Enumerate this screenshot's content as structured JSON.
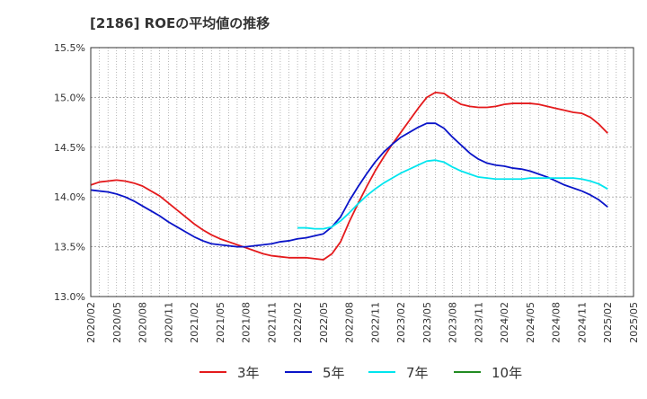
{
  "chart_data": {
    "type": "line",
    "title": "[2186]  ROEの平均値の推移",
    "xlabel": "",
    "ylabel": "",
    "ylim": [
      13.0,
      15.5
    ],
    "y_ticks": [
      "13.0%",
      "13.5%",
      "14.0%",
      "14.5%",
      "15.0%",
      "15.5%"
    ],
    "y_tick_values": [
      13.0,
      13.5,
      14.0,
      14.5,
      15.0,
      15.5
    ],
    "x_ticks": [
      "2020/02",
      "2020/05",
      "2020/08",
      "2020/11",
      "2021/02",
      "2021/05",
      "2021/08",
      "2021/11",
      "2022/02",
      "2022/05",
      "2022/08",
      "2022/11",
      "2023/02",
      "2023/05",
      "2023/08",
      "2023/11",
      "2024/02",
      "2024/05",
      "2024/08",
      "2024/11",
      "2025/02",
      "2025/05"
    ],
    "x_start": "2020/02",
    "x_end": "2025/05",
    "grid": true,
    "legend_position": "bottom",
    "series": [
      {
        "name": "3年",
        "color": "#e41a1c",
        "points": [
          [
            "2020/02",
            14.12
          ],
          [
            "2020/03",
            14.15
          ],
          [
            "2020/04",
            14.16
          ],
          [
            "2020/05",
            14.17
          ],
          [
            "2020/06",
            14.16
          ],
          [
            "2020/07",
            14.14
          ],
          [
            "2020/08",
            14.11
          ],
          [
            "2020/09",
            14.06
          ],
          [
            "2020/10",
            14.01
          ],
          [
            "2020/11",
            13.94
          ],
          [
            "2020/12",
            13.87
          ],
          [
            "2021/01",
            13.8
          ],
          [
            "2021/02",
            13.73
          ],
          [
            "2021/03",
            13.67
          ],
          [
            "2021/04",
            13.62
          ],
          [
            "2021/05",
            13.58
          ],
          [
            "2021/06",
            13.55
          ],
          [
            "2021/07",
            13.52
          ],
          [
            "2021/08",
            13.49
          ],
          [
            "2021/09",
            13.46
          ],
          [
            "2021/10",
            13.43
          ],
          [
            "2021/11",
            13.41
          ],
          [
            "2021/12",
            13.4
          ],
          [
            "2022/01",
            13.39
          ],
          [
            "2022/02",
            13.39
          ],
          [
            "2022/03",
            13.39
          ],
          [
            "2022/04",
            13.38
          ],
          [
            "2022/05",
            13.37
          ],
          [
            "2022/06",
            13.43
          ],
          [
            "2022/07",
            13.55
          ],
          [
            "2022/08",
            13.75
          ],
          [
            "2022/09",
            13.93
          ],
          [
            "2022/10",
            14.1
          ],
          [
            "2022/11",
            14.26
          ],
          [
            "2022/12",
            14.4
          ],
          [
            "2023/01",
            14.53
          ],
          [
            "2023/02",
            14.65
          ],
          [
            "2023/03",
            14.77
          ],
          [
            "2023/04",
            14.89
          ],
          [
            "2023/05",
            15.0
          ],
          [
            "2023/06",
            15.05
          ],
          [
            "2023/07",
            15.04
          ],
          [
            "2023/08",
            14.98
          ],
          [
            "2023/09",
            14.93
          ],
          [
            "2023/10",
            14.91
          ],
          [
            "2023/11",
            14.9
          ],
          [
            "2023/12",
            14.9
          ],
          [
            "2024/01",
            14.91
          ],
          [
            "2024/02",
            14.93
          ],
          [
            "2024/03",
            14.94
          ],
          [
            "2024/04",
            14.94
          ],
          [
            "2024/05",
            14.94
          ],
          [
            "2024/06",
            14.93
          ],
          [
            "2024/07",
            14.91
          ],
          [
            "2024/08",
            14.89
          ],
          [
            "2024/09",
            14.87
          ],
          [
            "2024/10",
            14.85
          ],
          [
            "2024/11",
            14.84
          ],
          [
            "2024/12",
            14.8
          ],
          [
            "2025/01",
            14.73
          ],
          [
            "2025/02",
            14.64
          ]
        ]
      },
      {
        "name": "5年",
        "color": "#0a14c8",
        "points": [
          [
            "2020/02",
            14.07
          ],
          [
            "2020/03",
            14.06
          ],
          [
            "2020/04",
            14.05
          ],
          [
            "2020/05",
            14.03
          ],
          [
            "2020/06",
            14.0
          ],
          [
            "2020/07",
            13.96
          ],
          [
            "2020/08",
            13.91
          ],
          [
            "2020/09",
            13.86
          ],
          [
            "2020/10",
            13.81
          ],
          [
            "2020/11",
            13.75
          ],
          [
            "2020/12",
            13.7
          ],
          [
            "2021/01",
            13.65
          ],
          [
            "2021/02",
            13.6
          ],
          [
            "2021/03",
            13.56
          ],
          [
            "2021/04",
            13.53
          ],
          [
            "2021/05",
            13.52
          ],
          [
            "2021/06",
            13.51
          ],
          [
            "2021/07",
            13.5
          ],
          [
            "2021/08",
            13.5
          ],
          [
            "2021/09",
            13.51
          ],
          [
            "2021/10",
            13.52
          ],
          [
            "2021/11",
            13.53
          ],
          [
            "2021/12",
            13.55
          ],
          [
            "2022/01",
            13.56
          ],
          [
            "2022/02",
            13.58
          ],
          [
            "2022/03",
            13.59
          ],
          [
            "2022/04",
            13.61
          ],
          [
            "2022/05",
            13.63
          ],
          [
            "2022/06",
            13.7
          ],
          [
            "2022/07",
            13.8
          ],
          [
            "2022/08",
            13.96
          ],
          [
            "2022/09",
            14.1
          ],
          [
            "2022/10",
            14.23
          ],
          [
            "2022/11",
            14.35
          ],
          [
            "2022/12",
            14.45
          ],
          [
            "2023/01",
            14.53
          ],
          [
            "2023/02",
            14.6
          ],
          [
            "2023/03",
            14.65
          ],
          [
            "2023/04",
            14.7
          ],
          [
            "2023/05",
            14.74
          ],
          [
            "2023/06",
            14.74
          ],
          [
            "2023/07",
            14.69
          ],
          [
            "2023/08",
            14.6
          ],
          [
            "2023/09",
            14.52
          ],
          [
            "2023/10",
            14.44
          ],
          [
            "2023/11",
            14.38
          ],
          [
            "2023/12",
            14.34
          ],
          [
            "2024/01",
            14.32
          ],
          [
            "2024/02",
            14.31
          ],
          [
            "2024/03",
            14.29
          ],
          [
            "2024/04",
            14.28
          ],
          [
            "2024/05",
            14.26
          ],
          [
            "2024/06",
            14.23
          ],
          [
            "2024/07",
            14.2
          ],
          [
            "2024/08",
            14.16
          ],
          [
            "2024/09",
            14.12
          ],
          [
            "2024/10",
            14.09
          ],
          [
            "2024/11",
            14.06
          ],
          [
            "2024/12",
            14.02
          ],
          [
            "2025/01",
            13.97
          ],
          [
            "2025/02",
            13.9
          ]
        ]
      },
      {
        "name": "7年",
        "color": "#00e5ee",
        "points": [
          [
            "2022/02",
            13.69
          ],
          [
            "2022/03",
            13.69
          ],
          [
            "2022/04",
            13.68
          ],
          [
            "2022/05",
            13.68
          ],
          [
            "2022/06",
            13.7
          ],
          [
            "2022/07",
            13.76
          ],
          [
            "2022/08",
            13.84
          ],
          [
            "2022/09",
            13.93
          ],
          [
            "2022/10",
            14.01
          ],
          [
            "2022/11",
            14.08
          ],
          [
            "2022/12",
            14.14
          ],
          [
            "2023/01",
            14.19
          ],
          [
            "2023/02",
            14.24
          ],
          [
            "2023/03",
            14.28
          ],
          [
            "2023/04",
            14.32
          ],
          [
            "2023/05",
            14.36
          ],
          [
            "2023/06",
            14.37
          ],
          [
            "2023/07",
            14.35
          ],
          [
            "2023/08",
            14.3
          ],
          [
            "2023/09",
            14.26
          ],
          [
            "2023/10",
            14.23
          ],
          [
            "2023/11",
            14.2
          ],
          [
            "2023/12",
            14.19
          ],
          [
            "2024/01",
            14.18
          ],
          [
            "2024/02",
            14.18
          ],
          [
            "2024/03",
            14.18
          ],
          [
            "2024/04",
            14.18
          ],
          [
            "2024/05",
            14.19
          ],
          [
            "2024/06",
            14.19
          ],
          [
            "2024/07",
            14.19
          ],
          [
            "2024/08",
            14.19
          ],
          [
            "2024/09",
            14.19
          ],
          [
            "2024/10",
            14.19
          ],
          [
            "2024/11",
            14.18
          ],
          [
            "2024/12",
            14.16
          ],
          [
            "2025/01",
            14.13
          ],
          [
            "2025/02",
            14.08
          ]
        ]
      },
      {
        "name": "10年",
        "color": "#228b22",
        "points": []
      }
    ]
  }
}
